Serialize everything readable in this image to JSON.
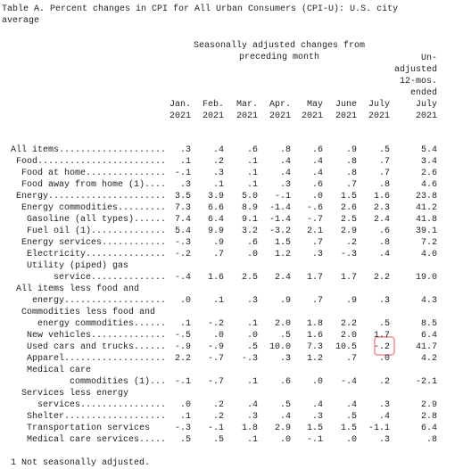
{
  "title": "Table A. Percent changes in CPI for All Urban Consumers (CPI-U): U.S. city average",
  "spanner": [
    "Seasonally adjusted changes from",
    "preceding month"
  ],
  "columns": [
    {
      "month": "Jan.",
      "year": "2021"
    },
    {
      "month": "Feb.",
      "year": "2021"
    },
    {
      "month": "Mar.",
      "year": "2021"
    },
    {
      "month": "Apr.",
      "year": "2021"
    },
    {
      "month": "May",
      "year": "2021"
    },
    {
      "month": "June",
      "year": "2021"
    },
    {
      "month": "July",
      "year": "2021"
    }
  ],
  "last_column": [
    "Un-",
    "adjusted",
    "12-mos.",
    "ended",
    "July",
    "2021"
  ],
  "rows": [
    {
      "label": [
        "All items...................."
      ],
      "values": [
        ".3",
        ".4",
        ".6",
        ".8",
        ".6",
        ".9",
        ".5",
        "5.4"
      ]
    },
    {
      "label": [
        "Food........................"
      ],
      "values": [
        ".1",
        ".2",
        ".1",
        ".4",
        ".4",
        ".8",
        ".7",
        "3.4"
      ]
    },
    {
      "label": [
        "Food at home..............."
      ],
      "values": [
        "-.1",
        ".3",
        ".1",
        ".4",
        ".4",
        ".8",
        ".7",
        "2.6"
      ]
    },
    {
      "label": [
        "Food away from home (1)...."
      ],
      "values": [
        ".3",
        ".1",
        ".1",
        ".3",
        ".6",
        ".7",
        ".8",
        "4.6"
      ]
    },
    {
      "label": [
        "Energy......................"
      ],
      "values": [
        "3.5",
        "3.9",
        "5.0",
        "-.1",
        ".0",
        "1.5",
        "1.6",
        "23.8"
      ]
    },
    {
      "label": [
        "Energy commodities........."
      ],
      "values": [
        "7.3",
        "6.6",
        "8.9",
        "-1.4",
        "-.6",
        "2.6",
        "2.3",
        "41.2"
      ]
    },
    {
      "label": [
        "Gasoline (all types)......"
      ],
      "values": [
        "7.4",
        "6.4",
        "9.1",
        "-1.4",
        "-.7",
        "2.5",
        "2.4",
        "41.8"
      ]
    },
    {
      "label": [
        "Fuel oil (1).............."
      ],
      "values": [
        "5.4",
        "9.9",
        "3.2",
        "-3.2",
        "2.1",
        "2.9",
        ".6",
        "39.1"
      ]
    },
    {
      "label": [
        "Energy services............"
      ],
      "values": [
        "-.3",
        ".9",
        ".6",
        "1.5",
        ".7",
        ".2",
        ".8",
        "7.2"
      ]
    },
    {
      "label": [
        "Electricity..............."
      ],
      "values": [
        "-.2",
        ".7",
        ".0",
        "1.2",
        ".3",
        "-.3",
        ".4",
        "4.0"
      ]
    },
    {
      "label": [
        "Utility (piped) gas",
        "service.............."
      ],
      "values": [
        "-.4",
        "1.6",
        "2.5",
        "2.4",
        "1.7",
        "1.7",
        "2.2",
        "19.0"
      ]
    },
    {
      "label": [
        "All items less food and",
        "energy..................."
      ],
      "values": [
        ".0",
        ".1",
        ".3",
        ".9",
        ".7",
        ".9",
        ".3",
        "4.3"
      ]
    },
    {
      "label": [
        "Commodities less food and",
        "energy commodities......"
      ],
      "values": [
        ".1",
        "-.2",
        ".1",
        "2.0",
        "1.8",
        "2.2",
        ".5",
        "8.5"
      ]
    },
    {
      "label": [
        "New vehicles.............."
      ],
      "values": [
        "-.5",
        ".0",
        ".0",
        ".5",
        "1.6",
        "2.0",
        "1.7",
        "6.4"
      ]
    },
    {
      "label": [
        "Used cars and trucks......"
      ],
      "values": [
        "-.9",
        "-.9",
        ".5",
        "10.0",
        "7.3",
        "10.5",
        "-.2",
        "41.7"
      ]
    },
    {
      "label": [
        "Apparel..................."
      ],
      "values": [
        "2.2",
        "-.7",
        "-.3",
        ".3",
        "1.2",
        ".7",
        ".0",
        "4.2"
      ]
    },
    {
      "label": [
        "Medical care",
        "commodities (1)..."
      ],
      "values": [
        "-.1",
        "-.7",
        ".1",
        ".6",
        ".0",
        "-.4",
        ".2",
        "-2.1"
      ]
    },
    {
      "label": [
        "Services less energy",
        "services................"
      ],
      "values": [
        ".0",
        ".2",
        ".4",
        ".5",
        ".4",
        ".4",
        ".3",
        "2.9"
      ]
    },
    {
      "label": [
        "Shelter..................."
      ],
      "values": [
        ".1",
        ".2",
        ".3",
        ".4",
        ".3",
        ".5",
        ".4",
        "2.8"
      ]
    },
    {
      "label": [
        "Transportation services"
      ],
      "values": [
        "-.3",
        "-.1",
        "1.8",
        "2.9",
        "1.5",
        "1.5",
        "-1.1",
        "6.4"
      ]
    },
    {
      "label": [
        "Medical care services....."
      ],
      "values": [
        ".5",
        ".5",
        ".1",
        ".0",
        "-.1",
        ".0",
        ".3",
        ".8"
      ]
    }
  ],
  "footnote": "1 Not seasonally adjusted."
}
